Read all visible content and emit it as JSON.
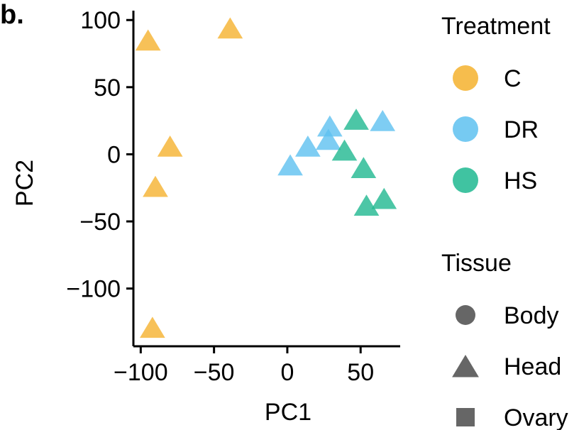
{
  "panel_label": "b.",
  "chart_data": {
    "type": "scatter",
    "xlabel": "PC1",
    "ylabel": "PC2",
    "xlim": [
      -105,
      77
    ],
    "ylim": [
      -143,
      107
    ],
    "x_ticks": [
      -100,
      -50,
      0,
      50
    ],
    "x_tick_labels": [
      "−100",
      "−50",
      "0",
      "50"
    ],
    "y_ticks": [
      100,
      50,
      0,
      -50,
      -100
    ],
    "y_tick_labels": [
      "100",
      "50",
      "0",
      "−50",
      "−100"
    ],
    "grid": false,
    "legend_placement": "right",
    "series": [
      {
        "name": "C",
        "color": "#F5B12E",
        "points": [
          {
            "x": -95,
            "y": 84,
            "tissue": "Head"
          },
          {
            "x": -39,
            "y": 93,
            "tissue": "Head"
          },
          {
            "x": -80,
            "y": 5,
            "tissue": "Head"
          },
          {
            "x": -90,
            "y": -25,
            "tissue": "Head"
          },
          {
            "x": -92,
            "y": -130,
            "tissue": "Head"
          }
        ]
      },
      {
        "name": "DR",
        "color": "#5EC1F0",
        "points": [
          {
            "x": 29,
            "y": 20,
            "tissue": "Head"
          },
          {
            "x": 65,
            "y": 24,
            "tissue": "Head"
          },
          {
            "x": 14,
            "y": 5,
            "tissue": "Head"
          },
          {
            "x": 28,
            "y": 10,
            "tissue": "Head"
          },
          {
            "x": 2,
            "y": -9,
            "tissue": "Head"
          }
        ]
      },
      {
        "name": "HS",
        "color": "#1FB890",
        "points": [
          {
            "x": 47,
            "y": 25,
            "tissue": "Head"
          },
          {
            "x": 39,
            "y": 2,
            "tissue": "Head"
          },
          {
            "x": 52,
            "y": -11,
            "tissue": "Head"
          },
          {
            "x": 54,
            "y": -39,
            "tissue": "Head"
          },
          {
            "x": 66,
            "y": -34,
            "tissue": "Head"
          }
        ]
      }
    ],
    "legend_treatment": {
      "title": "Treatment",
      "items": [
        {
          "label": "C",
          "color": "#F5B12E"
        },
        {
          "label": "DR",
          "color": "#5EC1F0"
        },
        {
          "label": "HS",
          "color": "#1FB890"
        }
      ]
    },
    "legend_tissue": {
      "title": "Tissue",
      "color": "#666666",
      "items": [
        {
          "label": "Body",
          "shape": "circle"
        },
        {
          "label": "Head",
          "shape": "triangle"
        },
        {
          "label": "Ovary",
          "shape": "square"
        }
      ]
    }
  }
}
